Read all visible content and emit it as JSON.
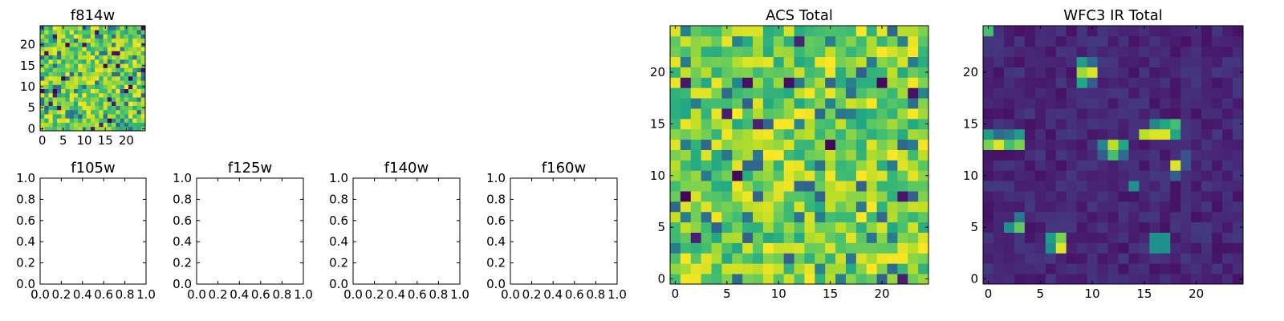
{
  "figure": {
    "background": "#ffffff",
    "colormap": "viridis"
  },
  "chart_data": [
    {
      "type": "heatmap",
      "title": "f814w",
      "grid_size": 25,
      "xticks": [
        0,
        5,
        10,
        15,
        20
      ],
      "yticks": [
        0,
        5,
        10,
        15,
        20
      ],
      "xlim": [
        -0.5,
        24.5
      ],
      "ylim": [
        -0.5,
        24.5
      ],
      "cells": "random noise, mostly 0.6-0.9 on a 0-1 viridis scale"
    },
    {
      "type": "line",
      "title": "f105w",
      "xlim": [
        0.0,
        1.0
      ],
      "ylim": [
        0.0,
        1.0
      ],
      "xticks": [
        "0.0",
        "0.2",
        "0.4",
        "0.6",
        "0.8",
        "1.0"
      ],
      "yticks": [
        "0.0",
        "0.2",
        "0.4",
        "0.6",
        "0.8",
        "1.0"
      ],
      "series": []
    },
    {
      "type": "line",
      "title": "f125w",
      "xlim": [
        0.0,
        1.0
      ],
      "ylim": [
        0.0,
        1.0
      ],
      "xticks": [
        "0.0",
        "0.2",
        "0.4",
        "0.6",
        "0.8",
        "1.0"
      ],
      "yticks": [
        "0.0",
        "0.2",
        "0.4",
        "0.6",
        "0.8",
        "1.0"
      ],
      "series": []
    },
    {
      "type": "line",
      "title": "f140w",
      "xlim": [
        0.0,
        1.0
      ],
      "ylim": [
        0.0,
        1.0
      ],
      "xticks": [
        "0.0",
        "0.2",
        "0.4",
        "0.6",
        "0.8",
        "1.0"
      ],
      "yticks": [
        "0.0",
        "0.2",
        "0.4",
        "0.6",
        "0.8",
        "1.0"
      ],
      "series": []
    },
    {
      "type": "line",
      "title": "f160w",
      "xlim": [
        0.0,
        1.0
      ],
      "ylim": [
        0.0,
        1.0
      ],
      "xticks": [
        "0.0",
        "0.2",
        "0.4",
        "0.6",
        "0.8",
        "1.0"
      ],
      "yticks": [
        "0.0",
        "0.2",
        "0.4",
        "0.6",
        "0.8",
        "1.0"
      ],
      "series": []
    },
    {
      "type": "heatmap",
      "title": "ACS Total",
      "grid_size": 25,
      "xticks": [
        0,
        5,
        10,
        15,
        20
      ],
      "yticks": [
        0,
        5,
        10,
        15,
        20
      ],
      "xlim": [
        -0.5,
        24.5
      ],
      "ylim": [
        -0.5,
        24.5
      ],
      "cells": "random noise, mostly 0.6-0.9 on a 0-1 viridis scale"
    },
    {
      "type": "heatmap",
      "title": "WFC3 IR Total",
      "grid_size": 25,
      "xticks": [
        0,
        5,
        10,
        15,
        20
      ],
      "yticks": [
        0,
        5,
        10,
        15,
        20
      ],
      "xlim": [
        -0.5,
        24.5
      ],
      "ylim": [
        -0.5,
        24.5
      ],
      "background_level": 0.05,
      "bright_sources": [
        {
          "x": 9,
          "y": 20,
          "value": 0.85
        },
        {
          "x": 10,
          "y": 20,
          "value": 0.95
        },
        {
          "x": 9,
          "y": 21,
          "value": 0.55
        },
        {
          "x": 10,
          "y": 21,
          "value": 0.35
        },
        {
          "x": 9,
          "y": 19,
          "value": 0.6
        },
        {
          "x": 10,
          "y": 19,
          "value": 0.3
        },
        {
          "x": 0,
          "y": 14,
          "value": 0.55
        },
        {
          "x": 1,
          "y": 14,
          "value": 0.35
        },
        {
          "x": 2,
          "y": 14,
          "value": 0.4
        },
        {
          "x": 3,
          "y": 14,
          "value": 0.55
        },
        {
          "x": 0,
          "y": 13,
          "value": 0.8
        },
        {
          "x": 1,
          "y": 13,
          "value": 0.95
        },
        {
          "x": 2,
          "y": 13,
          "value": 0.7
        },
        {
          "x": 3,
          "y": 13,
          "value": 0.8
        },
        {
          "x": 15,
          "y": 14,
          "value": 0.9
        },
        {
          "x": 16,
          "y": 14,
          "value": 0.95
        },
        {
          "x": 17,
          "y": 14,
          "value": 0.95
        },
        {
          "x": 18,
          "y": 14,
          "value": 0.6
        },
        {
          "x": 16,
          "y": 15,
          "value": 0.45
        },
        {
          "x": 17,
          "y": 15,
          "value": 0.6
        },
        {
          "x": 18,
          "y": 15,
          "value": 0.7
        },
        {
          "x": 11,
          "y": 13,
          "value": 0.45
        },
        {
          "x": 12,
          "y": 13,
          "value": 0.9
        },
        {
          "x": 13,
          "y": 13,
          "value": 0.6
        },
        {
          "x": 11,
          "y": 12,
          "value": 0.3
        },
        {
          "x": 12,
          "y": 12,
          "value": 0.7
        },
        {
          "x": 13,
          "y": 12,
          "value": 0.35
        },
        {
          "x": 19,
          "y": 12,
          "value": 0.25
        },
        {
          "x": 18,
          "y": 11,
          "value": 0.95
        },
        {
          "x": 19,
          "y": 11,
          "value": 0.25
        },
        {
          "x": 14,
          "y": 9,
          "value": 0.5
        },
        {
          "x": 3,
          "y": 6,
          "value": 0.4
        },
        {
          "x": 3,
          "y": 5,
          "value": 0.75
        },
        {
          "x": 2,
          "y": 5,
          "value": 0.5
        },
        {
          "x": 6,
          "y": 4,
          "value": 0.55
        },
        {
          "x": 7,
          "y": 4,
          "value": 0.8
        },
        {
          "x": 6,
          "y": 3,
          "value": 0.5
        },
        {
          "x": 7,
          "y": 3,
          "value": 0.95
        },
        {
          "x": 16,
          "y": 4,
          "value": 0.5
        },
        {
          "x": 17,
          "y": 4,
          "value": 0.5
        },
        {
          "x": 16,
          "y": 3,
          "value": 0.5
        },
        {
          "x": 17,
          "y": 3,
          "value": 0.5
        },
        {
          "x": 0,
          "y": 24,
          "value": 0.7
        },
        {
          "x": 18,
          "y": 10,
          "value": 0.3
        }
      ]
    }
  ]
}
